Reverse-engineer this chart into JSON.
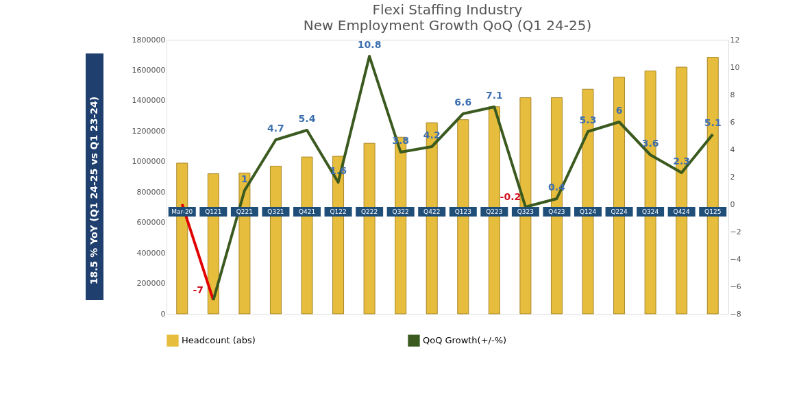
{
  "chart_data": {
    "type": "bar",
    "title": "Flexi Staffing Industry",
    "subtitle": "New Employment Growth QoQ (Q1 24-25)",
    "categories": [
      "Mar-20",
      "Q121",
      "Q221",
      "Q321",
      "Q421",
      "Q122",
      "Q222",
      "Q322",
      "Q422",
      "Q123",
      "Q223",
      "Q323",
      "Q423",
      "Q124",
      "Q224",
      "Q324",
      "Q424",
      "Q125"
    ],
    "series": [
      {
        "name": "Headcount (abs)",
        "color": "#e6bd3c",
        "values": [
          990000,
          920000,
          925000,
          970000,
          1030000,
          1035000,
          1120000,
          1160000,
          1255000,
          1275000,
          1360000,
          1420000,
          1420000,
          1475000,
          1555000,
          1595000,
          1620000,
          1685000
        ]
      },
      {
        "type": "line",
        "axis": "y2",
        "color": "#e00000",
        "values": [
          0,
          -7,
          null,
          null,
          null,
          null,
          null,
          null,
          null,
          null,
          null,
          null,
          null,
          null,
          null,
          null,
          null,
          null
        ]
      },
      {
        "name": "QoQ Growth(+/-%)",
        "type": "line",
        "axis": "y2",
        "color": "#3b5a1f",
        "values": [
          null,
          -7,
          1,
          4.7,
          5.4,
          1.6,
          10.8,
          3.8,
          4.2,
          6.6,
          7.1,
          -0.2,
          0.4,
          5.3,
          6,
          3.6,
          2.3,
          5.1
        ],
        "value_labels": [
          null,
          "-7",
          "1",
          "4.7",
          "5.4",
          "1.6",
          "10.8",
          "3.8",
          "4.2",
          "6.6",
          "7.1",
          "-0.2",
          "0.4",
          "5.3",
          "6",
          "3.6",
          "2.3",
          "5.1"
        ]
      }
    ],
    "ylim": [
      0,
      1800000
    ],
    "yticks": [
      0,
      200000,
      400000,
      600000,
      800000,
      1000000,
      1200000,
      1400000,
      1600000,
      1800000
    ],
    "y2lim": [
      -8,
      12
    ],
    "y2ticks": [
      -8,
      -6,
      -4,
      -2,
      0,
      2,
      4,
      6,
      8,
      10,
      12
    ],
    "annotations": [
      "18.5 % YoY (Q1 24-25 vs Q1 23-24)"
    ],
    "grid": false,
    "legend": "bottom",
    "line_style": "solid"
  }
}
